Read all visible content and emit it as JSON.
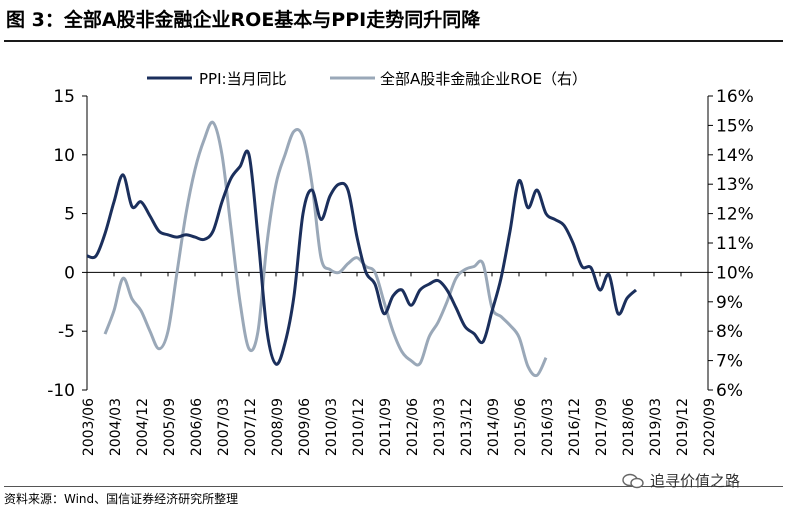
{
  "title": "图 3：全部A股非金融企业ROE基本与PPI走势同升同降",
  "source": "资料来源：Wind、国信证券经济研究所整理",
  "watermark": "追寻价值之路",
  "colors": {
    "ppi": "#1b2f5c",
    "roe": "#9aa8b8",
    "axis": "#000000"
  },
  "chart_data": {
    "type": "line",
    "legend_placement": "top",
    "grid": false,
    "x_tick_labels": [
      "2003/06",
      "2004/03",
      "2004/12",
      "2005/09",
      "2006/06",
      "2007/03",
      "2007/12",
      "2008/09",
      "2009/06",
      "2010/03",
      "2010/12",
      "2011/09",
      "2012/06",
      "2013/03",
      "2013/12",
      "2014/09",
      "2015/06",
      "2016/03",
      "2016/12",
      "2017/09",
      "2018/06",
      "2019/03",
      "2019/12",
      "2020/09"
    ],
    "y_left": {
      "ylim": [
        -10,
        15
      ],
      "ticks": [
        -10,
        -5,
        0,
        5,
        10,
        15
      ]
    },
    "y_right": {
      "ylim": [
        6,
        16
      ],
      "ticks": [
        "6%",
        "7%",
        "8%",
        "9%",
        "10%",
        "11%",
        "12%",
        "13%",
        "14%",
        "15%",
        "16%"
      ]
    },
    "series": [
      {
        "name": "PPI:当月同比",
        "axis": "left",
        "step_months": 3,
        "start": "2003/06",
        "values": [
          1.4,
          1.4,
          3.3,
          6.0,
          8.3,
          5.6,
          6.0,
          4.8,
          3.5,
          3.2,
          3.0,
          3.2,
          3.0,
          2.8,
          3.5,
          6.0,
          8.0,
          9.0,
          10.0,
          3.0,
          -5.0,
          -7.8,
          -6.0,
          -2.0,
          5.0,
          7.0,
          4.5,
          6.5,
          7.5,
          7.0,
          3.0,
          0.0,
          -1.0,
          -3.5,
          -2.0,
          -1.5,
          -2.8,
          -1.5,
          -1.0,
          -0.7,
          -1.5,
          -3.0,
          -4.6,
          -5.2,
          -5.9,
          -3.3,
          -0.5,
          3.5,
          7.8,
          5.5,
          7.0,
          5.0,
          4.5,
          4.0,
          2.5,
          0.5,
          0.4,
          -1.5,
          -0.2,
          -3.5,
          -2.2,
          -1.5
        ]
      },
      {
        "name": "全部A股非金融企业ROE（右）",
        "axis": "right",
        "step_months": 3,
        "start": "2003/12",
        "values": [
          7.9,
          8.7,
          9.8,
          9.1,
          8.7,
          8.0,
          7.4,
          8.0,
          10.0,
          12.0,
          13.5,
          14.5,
          15.1,
          14.0,
          11.5,
          9.0,
          7.4,
          8.0,
          11.0,
          13.0,
          14.0,
          14.8,
          14.6,
          13.0,
          10.5,
          10.1,
          10.0,
          10.3,
          10.5,
          10.2,
          10.0,
          9.0,
          8.0,
          7.3,
          7.0,
          6.9,
          7.8,
          8.3,
          9.0,
          9.8,
          10.1,
          10.2,
          10.3,
          8.8,
          8.5,
          8.2,
          7.8,
          6.8,
          6.5,
          7.1
        ]
      }
    ]
  }
}
